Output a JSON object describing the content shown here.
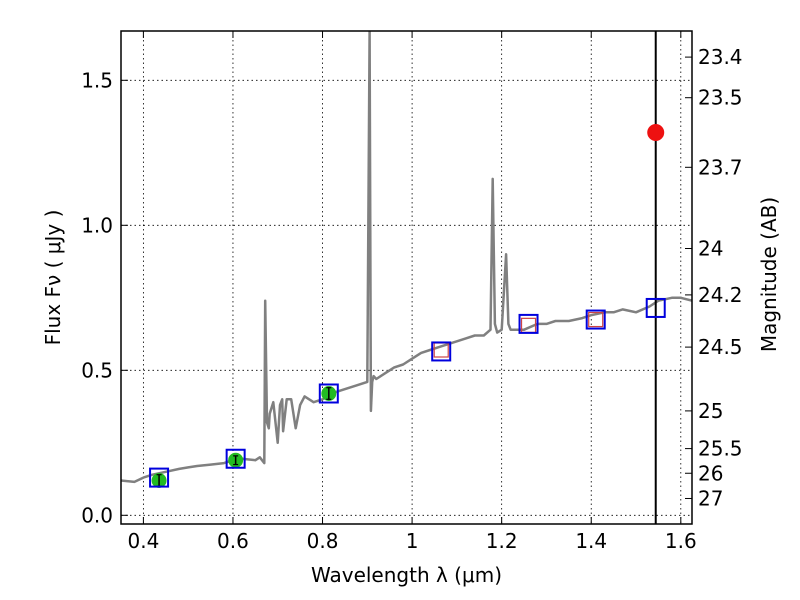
{
  "chart_data": {
    "type": "line",
    "xlabel": "Wavelength  λ (μm)",
    "ylabel": "Flux  Fν  ( μJy )",
    "y2label": "Magnitude (AB)",
    "xlim": [
      0.35,
      1.625
    ],
    "ylim": [
      -0.03,
      1.67
    ],
    "grid": true,
    "x_ticks": [
      0.4,
      0.6,
      0.8,
      1.0,
      1.2,
      1.4,
      1.6
    ],
    "x_tick_labels": [
      "0.4",
      "0.6",
      "0.8",
      "1",
      "1.2",
      "1.4",
      "1.6"
    ],
    "y_ticks": [
      0.0,
      0.5,
      1.0,
      1.5
    ],
    "y_tick_labels": [
      "0.0",
      "0.5",
      "1.0",
      "1.5"
    ],
    "mag_ticks": [
      {
        "label": "23.4",
        "flux": 1.58
      },
      {
        "label": "23.5",
        "flux": 1.44
      },
      {
        "label": "23.7",
        "flux": 1.2
      },
      {
        "label": "24",
        "flux": 0.92
      },
      {
        "label": "24.2",
        "flux": 0.76
      },
      {
        "label": "24.5",
        "flux": 0.58
      },
      {
        "label": "25",
        "flux": 0.36
      },
      {
        "label": "25.5",
        "flux": 0.23
      },
      {
        "label": "26",
        "flux": 0.145
      },
      {
        "label": "27",
        "flux": 0.058
      }
    ],
    "vline_x": 1.544,
    "spectrum": {
      "color": "#808080",
      "x": [
        0.35,
        0.38,
        0.4,
        0.42,
        0.45,
        0.48,
        0.5,
        0.52,
        0.55,
        0.58,
        0.6,
        0.62,
        0.65,
        0.66,
        0.67,
        0.672,
        0.676,
        0.68,
        0.682,
        0.69,
        0.7,
        0.705,
        0.71,
        0.712,
        0.72,
        0.73,
        0.74,
        0.75,
        0.76,
        0.78,
        0.8,
        0.82,
        0.84,
        0.86,
        0.88,
        0.9,
        0.905,
        0.908,
        0.911,
        0.914,
        0.92,
        0.94,
        0.96,
        0.98,
        1.0,
        1.02,
        1.04,
        1.06,
        1.08,
        1.1,
        1.12,
        1.14,
        1.16,
        1.175,
        1.18,
        1.185,
        1.19,
        1.2,
        1.21,
        1.215,
        1.22,
        1.23,
        1.25,
        1.28,
        1.3,
        1.32,
        1.35,
        1.38,
        1.4,
        1.43,
        1.45,
        1.47,
        1.5,
        1.53,
        1.55,
        1.58,
        1.6,
        1.625
      ],
      "y": [
        0.12,
        0.115,
        0.13,
        0.14,
        0.15,
        0.16,
        0.165,
        0.17,
        0.175,
        0.18,
        0.19,
        0.195,
        0.19,
        0.2,
        0.18,
        0.74,
        0.32,
        0.3,
        0.35,
        0.39,
        0.25,
        0.38,
        0.4,
        0.29,
        0.4,
        0.4,
        0.3,
        0.38,
        0.41,
        0.39,
        0.4,
        0.42,
        0.43,
        0.44,
        0.45,
        0.46,
        1.67,
        0.36,
        0.46,
        0.48,
        0.47,
        0.49,
        0.51,
        0.52,
        0.54,
        0.56,
        0.57,
        0.58,
        0.59,
        0.6,
        0.61,
        0.62,
        0.62,
        0.64,
        1.16,
        0.66,
        0.63,
        0.64,
        0.9,
        0.66,
        0.64,
        0.64,
        0.64,
        0.66,
        0.66,
        0.67,
        0.67,
        0.68,
        0.69,
        0.7,
        0.7,
        0.71,
        0.7,
        0.72,
        0.74,
        0.75,
        0.75,
        0.74
      ]
    },
    "observed_points": {
      "color": "#22bb22",
      "x": [
        0.435,
        0.606,
        0.814
      ],
      "y": [
        0.12,
        0.19,
        0.42
      ],
      "err": [
        0.02,
        0.015,
        0.02
      ]
    },
    "model_points": {
      "color": "#0000dd",
      "x": [
        0.435,
        0.606,
        0.814,
        1.065,
        1.26,
        1.41,
        1.544
      ],
      "y": [
        0.13,
        0.195,
        0.42,
        0.565,
        0.66,
        0.675,
        0.715
      ]
    },
    "upper_limit_points": {
      "color": "#cc4444",
      "x": [
        1.065,
        1.26,
        1.41
      ],
      "y": [
        0.57,
        0.655,
        0.675
      ]
    },
    "red_point": {
      "color": "#ee1111",
      "x": 1.544,
      "y": 1.32
    }
  }
}
